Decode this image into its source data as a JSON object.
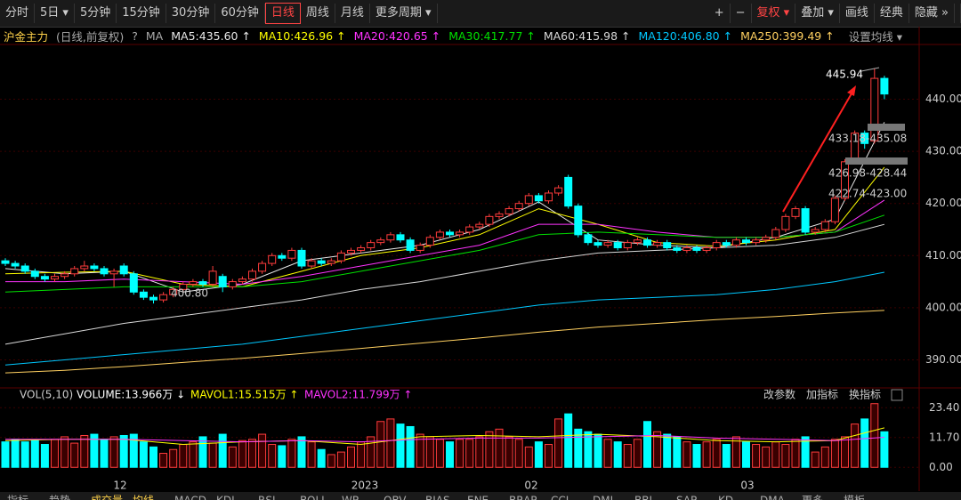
{
  "toolbar": {
    "periods": [
      "分时",
      "5日 ▾",
      "5分钟",
      "15分钟",
      "30分钟",
      "60分钟",
      "日线",
      "周线",
      "月线",
      "更多周期 ▾"
    ],
    "active_period": 6,
    "tools": [
      "+",
      "−",
      "复权 ▾",
      "叠加 ▾",
      "画线",
      "经典",
      "隐藏 »"
    ]
  },
  "legend": {
    "symbol": "沪金主力",
    "mode": "(日线,前复权)",
    "help": "?",
    "ma_label": "MA",
    "settings": "设置均线 ▾"
  },
  "chart_data": [
    {
      "type": "candlestick",
      "candles": [
        [
          409,
          409.5,
          408,
          408.5
        ],
        [
          408.5,
          409,
          407.5,
          408
        ],
        [
          408,
          408.5,
          406.5,
          407
        ],
        [
          407,
          407.5,
          405.5,
          406
        ],
        [
          406,
          406.5,
          405,
          405.5
        ],
        [
          405.5,
          406.5,
          405,
          406
        ],
        [
          406,
          407,
          405.5,
          406.5
        ],
        [
          406.5,
          408,
          406,
          407.5
        ],
        [
          407.5,
          409,
          407,
          408
        ],
        [
          408,
          408.5,
          407,
          407.5
        ],
        [
          407.5,
          408,
          406,
          406.5
        ],
        [
          406.5,
          407.5,
          404,
          407
        ],
        [
          408,
          408.5,
          406,
          406.5
        ],
        [
          406.5,
          407,
          402.5,
          403
        ],
        [
          403,
          403.5,
          401.5,
          402
        ],
        [
          402,
          402.5,
          400.8,
          401.5
        ],
        [
          401.5,
          403,
          401,
          402.5
        ],
        [
          402.5,
          404,
          402,
          403.5
        ],
        [
          403.5,
          405,
          403,
          404.5
        ],
        [
          404.5,
          405.5,
          404,
          405
        ],
        [
          405,
          405.5,
          404,
          404.5
        ],
        [
          404.5,
          408,
          404,
          407
        ],
        [
          406,
          406.5,
          403,
          404
        ],
        [
          404,
          405.5,
          403.5,
          405
        ],
        [
          405,
          406,
          404.5,
          405.5
        ],
        [
          405.5,
          407.5,
          405,
          407
        ],
        [
          407,
          409,
          406.5,
          408.5
        ],
        [
          408.5,
          410.5,
          408,
          410
        ],
        [
          410,
          410.5,
          409,
          409.5
        ],
        [
          409.5,
          411.5,
          409,
          411
        ],
        [
          411,
          411.5,
          407.5,
          408
        ],
        [
          408,
          409.5,
          407.5,
          409
        ],
        [
          409,
          409.5,
          408,
          408.5
        ],
        [
          408.5,
          409.5,
          408,
          409
        ],
        [
          409,
          411,
          408.5,
          410.5
        ],
        [
          410.5,
          411.5,
          410,
          411
        ],
        [
          411,
          412,
          410.5,
          411.5
        ],
        [
          411.5,
          413,
          411,
          412.5
        ],
        [
          412.5,
          413.5,
          412,
          413
        ],
        [
          413,
          414.5,
          412.5,
          414
        ],
        [
          414,
          414.5,
          412.5,
          413
        ],
        [
          413,
          413.5,
          410.5,
          411
        ],
        [
          411,
          412.5,
          410.5,
          412
        ],
        [
          412,
          414,
          411.5,
          413.5
        ],
        [
          413.5,
          415,
          413,
          414.5
        ],
        [
          414.5,
          415,
          413.5,
          414
        ],
        [
          414,
          415,
          413.5,
          414.5
        ],
        [
          414.5,
          416,
          414,
          415.5
        ],
        [
          415.5,
          416.5,
          415,
          416
        ],
        [
          416,
          418,
          415.5,
          417.5
        ],
        [
          417.5,
          418.5,
          417,
          418
        ],
        [
          418,
          419.5,
          417.5,
          419
        ],
        [
          419,
          420.5,
          418.5,
          420
        ],
        [
          420,
          422,
          419.5,
          421.5
        ],
        [
          421.5,
          422,
          420,
          420.5
        ],
        [
          420.5,
          422.5,
          420,
          422
        ],
        [
          422,
          423.5,
          421.5,
          423
        ],
        [
          425,
          425.5,
          419,
          419.5
        ],
        [
          419.5,
          420,
          413.5,
          414
        ],
        [
          414,
          414.5,
          412,
          412.5
        ],
        [
          412.5,
          413,
          411.5,
          412
        ],
        [
          412,
          413,
          411.5,
          412.5
        ],
        [
          412.5,
          413,
          411,
          411.5
        ],
        [
          411.5,
          413,
          411,
          412.5
        ],
        [
          412.5,
          413.5,
          412,
          413
        ],
        [
          413,
          413.5,
          411.5,
          412
        ],
        [
          412,
          413,
          411.5,
          412.5
        ],
        [
          412.5,
          413,
          411,
          411.5
        ],
        [
          411.5,
          412,
          410.5,
          411
        ],
        [
          411,
          412,
          410.5,
          411.5
        ],
        [
          411.5,
          412,
          410.5,
          411
        ],
        [
          411,
          412,
          410.5,
          411.5
        ],
        [
          411.5,
          413,
          411,
          412.5
        ],
        [
          412.5,
          413,
          411.5,
          412
        ],
        [
          412,
          413.5,
          411.5,
          413
        ],
        [
          413,
          413.5,
          412,
          412.5
        ],
        [
          412.5,
          413.5,
          412,
          413
        ],
        [
          413,
          414,
          412.5,
          413.5
        ],
        [
          413.5,
          415.5,
          413,
          415
        ],
        [
          415,
          418,
          414.5,
          417.5
        ],
        [
          417.5,
          419.5,
          417,
          419
        ],
        [
          419,
          419.5,
          414,
          414.5
        ],
        [
          414.5,
          415.5,
          414,
          415
        ],
        [
          415,
          417,
          414.5,
          416.5
        ],
        [
          416.5,
          421.5,
          416,
          421
        ],
        [
          421,
          428.5,
          420.5,
          428
        ],
        [
          428,
          434,
          427.5,
          433.5
        ],
        [
          433.5,
          434,
          430.5,
          431.5
        ],
        [
          432,
          445.94,
          431.5,
          444
        ],
        [
          444,
          444.5,
          440,
          441
        ]
      ],
      "ma_index": [
        0,
        6,
        12,
        18,
        24,
        30,
        36,
        42,
        48,
        54,
        60,
        66,
        72,
        78,
        84,
        89
      ],
      "series": [
        {
          "name": "MA5",
          "label": "MA5:435.60 ↑",
          "color": "#e8e8e8",
          "values": [
            407.5,
            406.5,
            407,
            403,
            404.5,
            409,
            410.5,
            412,
            415,
            420.3,
            413,
            412,
            411.5,
            413.5,
            417,
            435.6
          ]
        },
        {
          "name": "MA10",
          "label": "MA10:426.96 ↑",
          "color": "#ffff00",
          "values": [
            406.5,
            406.8,
            407,
            404.5,
            404,
            407,
            410,
            411.5,
            414,
            419,
            416,
            412.5,
            411.8,
            413,
            415,
            426.96
          ]
        },
        {
          "name": "MA20",
          "label": "MA20:420.65 ↑",
          "color": "#ff33ff",
          "values": [
            405,
            405,
            405.5,
            405,
            404.5,
            406,
            408,
            410,
            412,
            416,
            416,
            414.5,
            413.5,
            413.5,
            414.5,
            420.65
          ]
        },
        {
          "name": "MA30",
          "label": "MA30:417.77 ↑",
          "color": "#00e000",
          "values": [
            403,
            403.5,
            404,
            404,
            404,
            405,
            407,
            409,
            411,
            414,
            414.5,
            414,
            413.5,
            413.5,
            414.5,
            417.77
          ]
        },
        {
          "name": "MA60",
          "label": "MA60:415.98 ↑",
          "color": "#d8d8d8",
          "values": [
            393,
            395,
            397,
            398.5,
            400,
            401.5,
            403.5,
            405,
            407,
            409,
            410.5,
            411,
            411.5,
            412,
            413.5,
            415.98
          ]
        },
        {
          "name": "MA120",
          "label": "MA120:406.80 ↑",
          "color": "#00c8ff",
          "values": [
            389,
            390,
            391,
            392,
            393,
            394.5,
            396,
            397.5,
            399,
            400.5,
            401.5,
            402,
            402.5,
            403.5,
            405,
            406.8
          ]
        },
        {
          "name": "MA250",
          "label": "MA250:399.49 ↑",
          "color": "#ffd060",
          "values": [
            387.5,
            388,
            388.7,
            389.5,
            390.3,
            391.2,
            392.2,
            393.2,
            394.2,
            395.3,
            396.3,
            397,
            397.7,
            398.3,
            399,
            399.49
          ]
        }
      ],
      "ylim": [
        385.3,
        450.5
      ],
      "yticks": [
        {
          "value": 390,
          "label": "390.00"
        },
        {
          "value": 400,
          "label": "400.00"
        },
        {
          "value": 410,
          "label": "410.00"
        },
        {
          "value": 420,
          "label": "420.00"
        },
        {
          "value": 430,
          "label": "430.00"
        },
        {
          "value": 440,
          "label": "440.00"
        }
      ],
      "annotations": [
        "445.94",
        "433.18-435.08",
        "426.98-428.44",
        "422.74-423.00",
        "400.80"
      ]
    },
    {
      "type": "bar",
      "title": "VOL(5,10)",
      "volume_label": "VOLUME:13.966万 ↓",
      "values": [
        10,
        11,
        10,
        10.5,
        9,
        11,
        12,
        9.5,
        12.5,
        13,
        11,
        12,
        12.5,
        13,
        10,
        8,
        5.5,
        7,
        9,
        10,
        12,
        9.5,
        13,
        8,
        10.5,
        11,
        13,
        9,
        8.5,
        11,
        12,
        10,
        7,
        5,
        6,
        8,
        10,
        12,
        18,
        19,
        17,
        16,
        13,
        12,
        11,
        10,
        11,
        11,
        12,
        14,
        15,
        12,
        11,
        8,
        10,
        9,
        19,
        21,
        15,
        14,
        13,
        11,
        10,
        9,
        11,
        18,
        14,
        13,
        12,
        10,
        9,
        10,
        11,
        9,
        12,
        10,
        9,
        8,
        10,
        9,
        11,
        12,
        6,
        8,
        11,
        12,
        17,
        19,
        25,
        13.966
      ],
      "ma_index": [
        0,
        6,
        12,
        18,
        24,
        30,
        36,
        42,
        48,
        54,
        60,
        66,
        72,
        78,
        84,
        89
      ],
      "series": [
        {
          "name": "MAVOL1",
          "label": "MAVOL1:15.515万 ↑",
          "color": "#ffff00",
          "values": [
            10.5,
            11,
            11,
            9,
            10,
            10.5,
            9,
            12,
            12.5,
            12,
            13,
            12,
            10.5,
            10,
            10.5,
            15.515
          ]
        },
        {
          "name": "MAVOL2",
          "label": "MAVOL2:11.799万 ↑",
          "color": "#ff33ff",
          "values": [
            11,
            11,
            11,
            10.5,
            10,
            10.5,
            10,
            11,
            11.5,
            11.5,
            12,
            12.5,
            11.5,
            11,
            10.5,
            11.799
          ]
        }
      ],
      "ylim": [
        -3.4,
        25.6
      ],
      "yticks": [
        {
          "value": 0,
          "label": "0.00"
        },
        {
          "value": 11.7,
          "label": "11.70"
        },
        {
          "value": 23.4,
          "label": "23.40"
        }
      ],
      "tools": [
        "改参数",
        "加指标",
        "换指标"
      ]
    }
  ],
  "x_labels": [
    "12",
    "2023",
    "02",
    "03"
  ],
  "indicator_tabs": [
    "指标",
    "趋势",
    "成交量",
    "均线",
    "MACD",
    "KDJ",
    "RSI",
    "BOLL",
    "WR",
    "OBV",
    "BIAS",
    "ENE",
    "BRAR",
    "CCI",
    "DMI",
    "BBI",
    "SAR",
    "KD",
    "DMA",
    "更多",
    "模板"
  ]
}
